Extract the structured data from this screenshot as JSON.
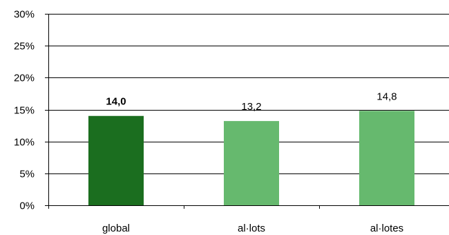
{
  "chart_data": {
    "type": "bar",
    "categories": [
      "global",
      "al·lots",
      "al·lotes"
    ],
    "values": [
      14.0,
      13.2,
      14.8
    ],
    "data_labels": [
      "14,0",
      "13,2",
      "14,8"
    ],
    "data_label_bold": [
      true,
      false,
      false
    ],
    "bar_colors": [
      "#1b6e1f",
      "#66b96e",
      "#66b96e"
    ],
    "yticks": [
      "0%",
      "5%",
      "10%",
      "15%",
      "20%",
      "25%",
      "30%"
    ],
    "ytick_values": [
      0,
      5,
      10,
      15,
      20,
      25,
      30
    ],
    "ylim": [
      0,
      30
    ],
    "title": "",
    "xlabel": "",
    "ylabel": "",
    "grid": true,
    "legend": "none"
  }
}
